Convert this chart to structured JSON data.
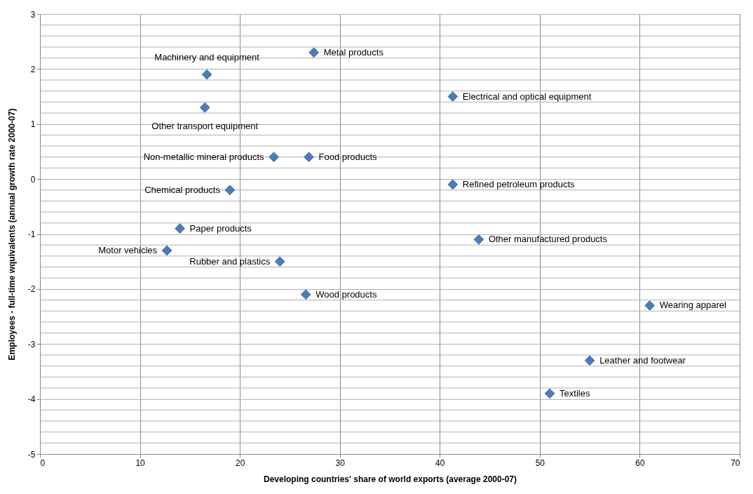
{
  "chart_data": {
    "type": "scatter",
    "xlabel": "Developing countries' share of world exports (average  2000-07)",
    "ylabel": "Employees - full-time wquivalents (annual growth rate 2000-07)",
    "x": [
      16.7,
      27.4,
      16.5,
      41.3,
      23.4,
      26.9,
      19.0,
      41.3,
      14.0,
      12.7,
      24.0,
      43.9,
      26.6,
      61.0,
      55.0,
      51.0
    ],
    "series": [
      {
        "color": "#4a7ebb",
        "values": [
          1.9,
          2.3,
          1.3,
          1.5,
          0.4,
          0.4,
          -0.2,
          -0.1,
          -0.9,
          -1.3,
          -1.5,
          -1.1,
          -2.1,
          -2.3,
          -3.3,
          -3.9
        ]
      }
    ],
    "annotations": [
      {
        "text": "Machinery and equipment",
        "x": 16.7,
        "y": 1.9
      },
      {
        "text": "Metal products",
        "x": 27.4,
        "y": 2.3
      },
      {
        "text": "Other transport equipment",
        "x": 16.5,
        "y": 1.3
      },
      {
        "text": "Electrical and optical equipment",
        "x": 41.3,
        "y": 1.5
      },
      {
        "text": "Non-metallic mineral products",
        "x": 23.4,
        "y": 0.4
      },
      {
        "text": "Food products",
        "x": 26.9,
        "y": 0.4
      },
      {
        "text": "Chemical products",
        "x": 19.0,
        "y": -0.2
      },
      {
        "text": "Refined petroleum products",
        "x": 41.3,
        "y": -0.1
      },
      {
        "text": "Paper products",
        "x": 14.0,
        "y": -0.9
      },
      {
        "text": "Motor vehicles",
        "x": 12.7,
        "y": -1.3
      },
      {
        "text": "Rubber and plastics",
        "x": 24.0,
        "y": -1.5
      },
      {
        "text": "Other manufactured products",
        "x": 43.9,
        "y": -1.1
      },
      {
        "text": "Wood products",
        "x": 26.6,
        "y": -2.1
      },
      {
        "text": "Wearing apparel",
        "x": 61.0,
        "y": -2.3
      },
      {
        "text": "Leather and footwear",
        "x": 55.0,
        "y": -3.3
      },
      {
        "text": "Textiles",
        "x": 51.0,
        "y": -3.9
      }
    ],
    "xlim": [
      0,
      70
    ],
    "xticks": [
      0,
      10,
      20,
      30,
      40,
      50,
      60,
      70
    ],
    "ylim": [
      -5,
      3
    ],
    "yticks": [
      -5,
      {
        "value": -4.8,
        "label": null
      },
      {
        "value": -4.6,
        "label": null
      },
      {
        "value": -4.4,
        "label": null
      },
      {
        "value": -4.2,
        "label": null
      },
      -4,
      {
        "value": -3.8,
        "label": null
      },
      {
        "value": -3.6,
        "label": null
      },
      {
        "value": -3.4,
        "label": null
      },
      {
        "value": -3.2,
        "label": null
      },
      -3,
      {
        "value": -2.8,
        "label": null
      },
      {
        "value": -2.6,
        "label": null
      },
      {
        "value": -2.4,
        "label": null
      },
      {
        "value": -2.2,
        "label": null
      },
      -2,
      {
        "value": -1.8,
        "label": null
      },
      {
        "value": -1.6,
        "label": null
      },
      {
        "value": -1.4,
        "label": null
      },
      {
        "value": -1.2,
        "label": null
      },
      -1,
      {
        "value": -0.8,
        "label": null
      },
      {
        "value": -0.6,
        "label": null
      },
      {
        "value": -0.4,
        "label": null
      },
      {
        "value": -0.2,
        "label": null
      },
      0,
      {
        "value": 0.2,
        "label": null
      },
      {
        "value": 0.4,
        "label": null
      },
      {
        "value": 0.6,
        "label": null
      },
      {
        "value": 0.8,
        "label": null
      },
      1,
      {
        "value": 1.2,
        "label": null
      },
      {
        "value": 1.4,
        "label": null
      },
      {
        "value": 1.6,
        "label": null
      },
      {
        "value": 1.8,
        "label": null
      },
      2,
      {
        "value": 2.2,
        "label": null
      },
      {
        "value": 2.4,
        "label": null
      },
      {
        "value": 2.6,
        "label": null
      },
      {
        "value": 2.8,
        "label": null
      },
      3
    ],
    "grid": true,
    "marker": "diamond"
  }
}
